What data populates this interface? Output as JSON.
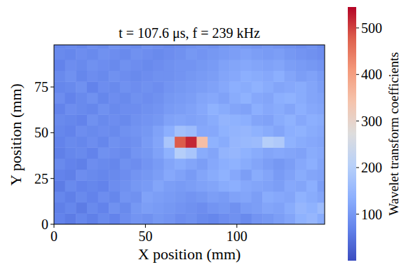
{
  "chart_data": {
    "type": "heatmap",
    "title": "t = 107.6 μs, f = 239 kHz",
    "x_label": "X position (mm)",
    "y_label": "Y position (mm)",
    "xlim": [
      0,
      148
    ],
    "ylim": [
      0,
      98
    ],
    "xticks": [
      0,
      50,
      100
    ],
    "yticks": [
      0,
      25,
      50,
      75
    ],
    "x": [
      3,
      9,
      15,
      21,
      27,
      33,
      39,
      45,
      51,
      57,
      63,
      69,
      75,
      81,
      87,
      93,
      99,
      105,
      111,
      117,
      123,
      129,
      135,
      141,
      147
    ],
    "y": [
      3,
      9,
      15,
      21,
      27,
      33,
      39,
      45,
      51,
      57,
      63,
      69,
      75,
      81,
      87,
      93,
      99
    ],
    "values": [
      [
        70,
        60,
        75,
        65,
        80,
        70,
        85,
        95,
        90,
        100,
        95,
        85,
        90,
        80,
        75,
        85,
        90,
        80,
        95,
        100,
        110,
        120,
        140,
        150,
        130
      ],
      [
        65,
        75,
        60,
        80,
        70,
        90,
        80,
        100,
        110,
        105,
        100,
        95,
        90,
        85,
        95,
        100,
        90,
        105,
        110,
        120,
        115,
        130,
        150,
        140,
        160
      ],
      [
        75,
        65,
        80,
        70,
        85,
        75,
        95,
        90,
        115,
        110,
        105,
        100,
        95,
        100,
        110,
        105,
        115,
        120,
        110,
        130,
        125,
        120,
        140,
        130,
        120
      ],
      [
        60,
        80,
        70,
        75,
        70,
        85,
        90,
        100,
        105,
        120,
        110,
        105,
        110,
        115,
        120,
        130,
        135,
        125,
        120,
        115,
        110,
        125,
        120,
        135,
        110
      ],
      [
        70,
        65,
        85,
        80,
        75,
        80,
        85,
        95,
        100,
        110,
        125,
        115,
        105,
        120,
        130,
        140,
        125,
        110,
        130,
        120,
        105,
        115,
        130,
        120,
        115
      ],
      [
        80,
        70,
        65,
        85,
        80,
        75,
        90,
        85,
        95,
        105,
        120,
        130,
        120,
        110,
        125,
        135,
        140,
        130,
        120,
        110,
        100,
        110,
        125,
        135,
        120
      ],
      [
        65,
        75,
        80,
        70,
        90,
        85,
        80,
        95,
        100,
        115,
        140,
        200,
        180,
        130,
        120,
        145,
        150,
        140,
        130,
        120,
        125,
        120,
        115,
        130,
        125
      ],
      [
        70,
        80,
        75,
        85,
        75,
        90,
        85,
        90,
        105,
        120,
        180,
        480,
        520,
        350,
        140,
        130,
        150,
        155,
        160,
        200,
        190,
        140,
        130,
        125,
        120
      ],
      [
        75,
        70,
        85,
        80,
        85,
        80,
        90,
        95,
        100,
        115,
        135,
        170,
        160,
        125,
        125,
        140,
        145,
        150,
        140,
        130,
        120,
        135,
        140,
        130,
        125
      ],
      [
        80,
        75,
        70,
        90,
        80,
        85,
        80,
        90,
        95,
        100,
        115,
        120,
        115,
        120,
        130,
        145,
        140,
        135,
        120,
        115,
        130,
        140,
        125,
        135,
        130
      ],
      [
        70,
        85,
        80,
        75,
        90,
        80,
        85,
        85,
        90,
        95,
        105,
        110,
        115,
        125,
        140,
        130,
        120,
        115,
        135,
        125,
        130,
        120,
        135,
        125,
        120
      ],
      [
        85,
        70,
        80,
        90,
        75,
        85,
        80,
        90,
        85,
        90,
        100,
        105,
        110,
        120,
        125,
        115,
        130,
        140,
        125,
        120,
        135,
        140,
        130,
        120,
        115
      ],
      [
        75,
        80,
        90,
        70,
        85,
        80,
        90,
        85,
        90,
        85,
        95,
        100,
        105,
        110,
        115,
        125,
        135,
        130,
        140,
        130,
        120,
        125,
        130,
        120,
        110
      ],
      [
        80,
        90,
        75,
        85,
        80,
        90,
        85,
        80,
        85,
        90,
        90,
        95,
        100,
        105,
        110,
        120,
        125,
        135,
        130,
        125,
        135,
        120,
        110,
        115,
        105
      ],
      [
        70,
        85,
        80,
        90,
        85,
        80,
        90,
        85,
        80,
        85,
        90,
        95,
        95,
        100,
        105,
        115,
        120,
        125,
        120,
        115,
        120,
        110,
        105,
        100,
        95
      ],
      [
        80,
        75,
        85,
        80,
        90,
        85,
        80,
        90,
        85,
        80,
        85,
        90,
        100,
        95,
        100,
        105,
        110,
        115,
        110,
        105,
        110,
        100,
        95,
        90,
        85
      ],
      [
        75,
        80,
        75,
        85,
        80,
        90,
        85,
        80,
        90,
        85,
        80,
        85,
        90,
        95,
        90,
        100,
        105,
        100,
        95,
        100,
        95,
        90,
        85,
        90,
        80
      ]
    ],
    "colorbar_label": "Wavelet transform coefficients",
    "colorbar_range": [
      0,
      545
    ],
    "colorbar_ticks": [
      100,
      200,
      300,
      400,
      500
    ]
  }
}
